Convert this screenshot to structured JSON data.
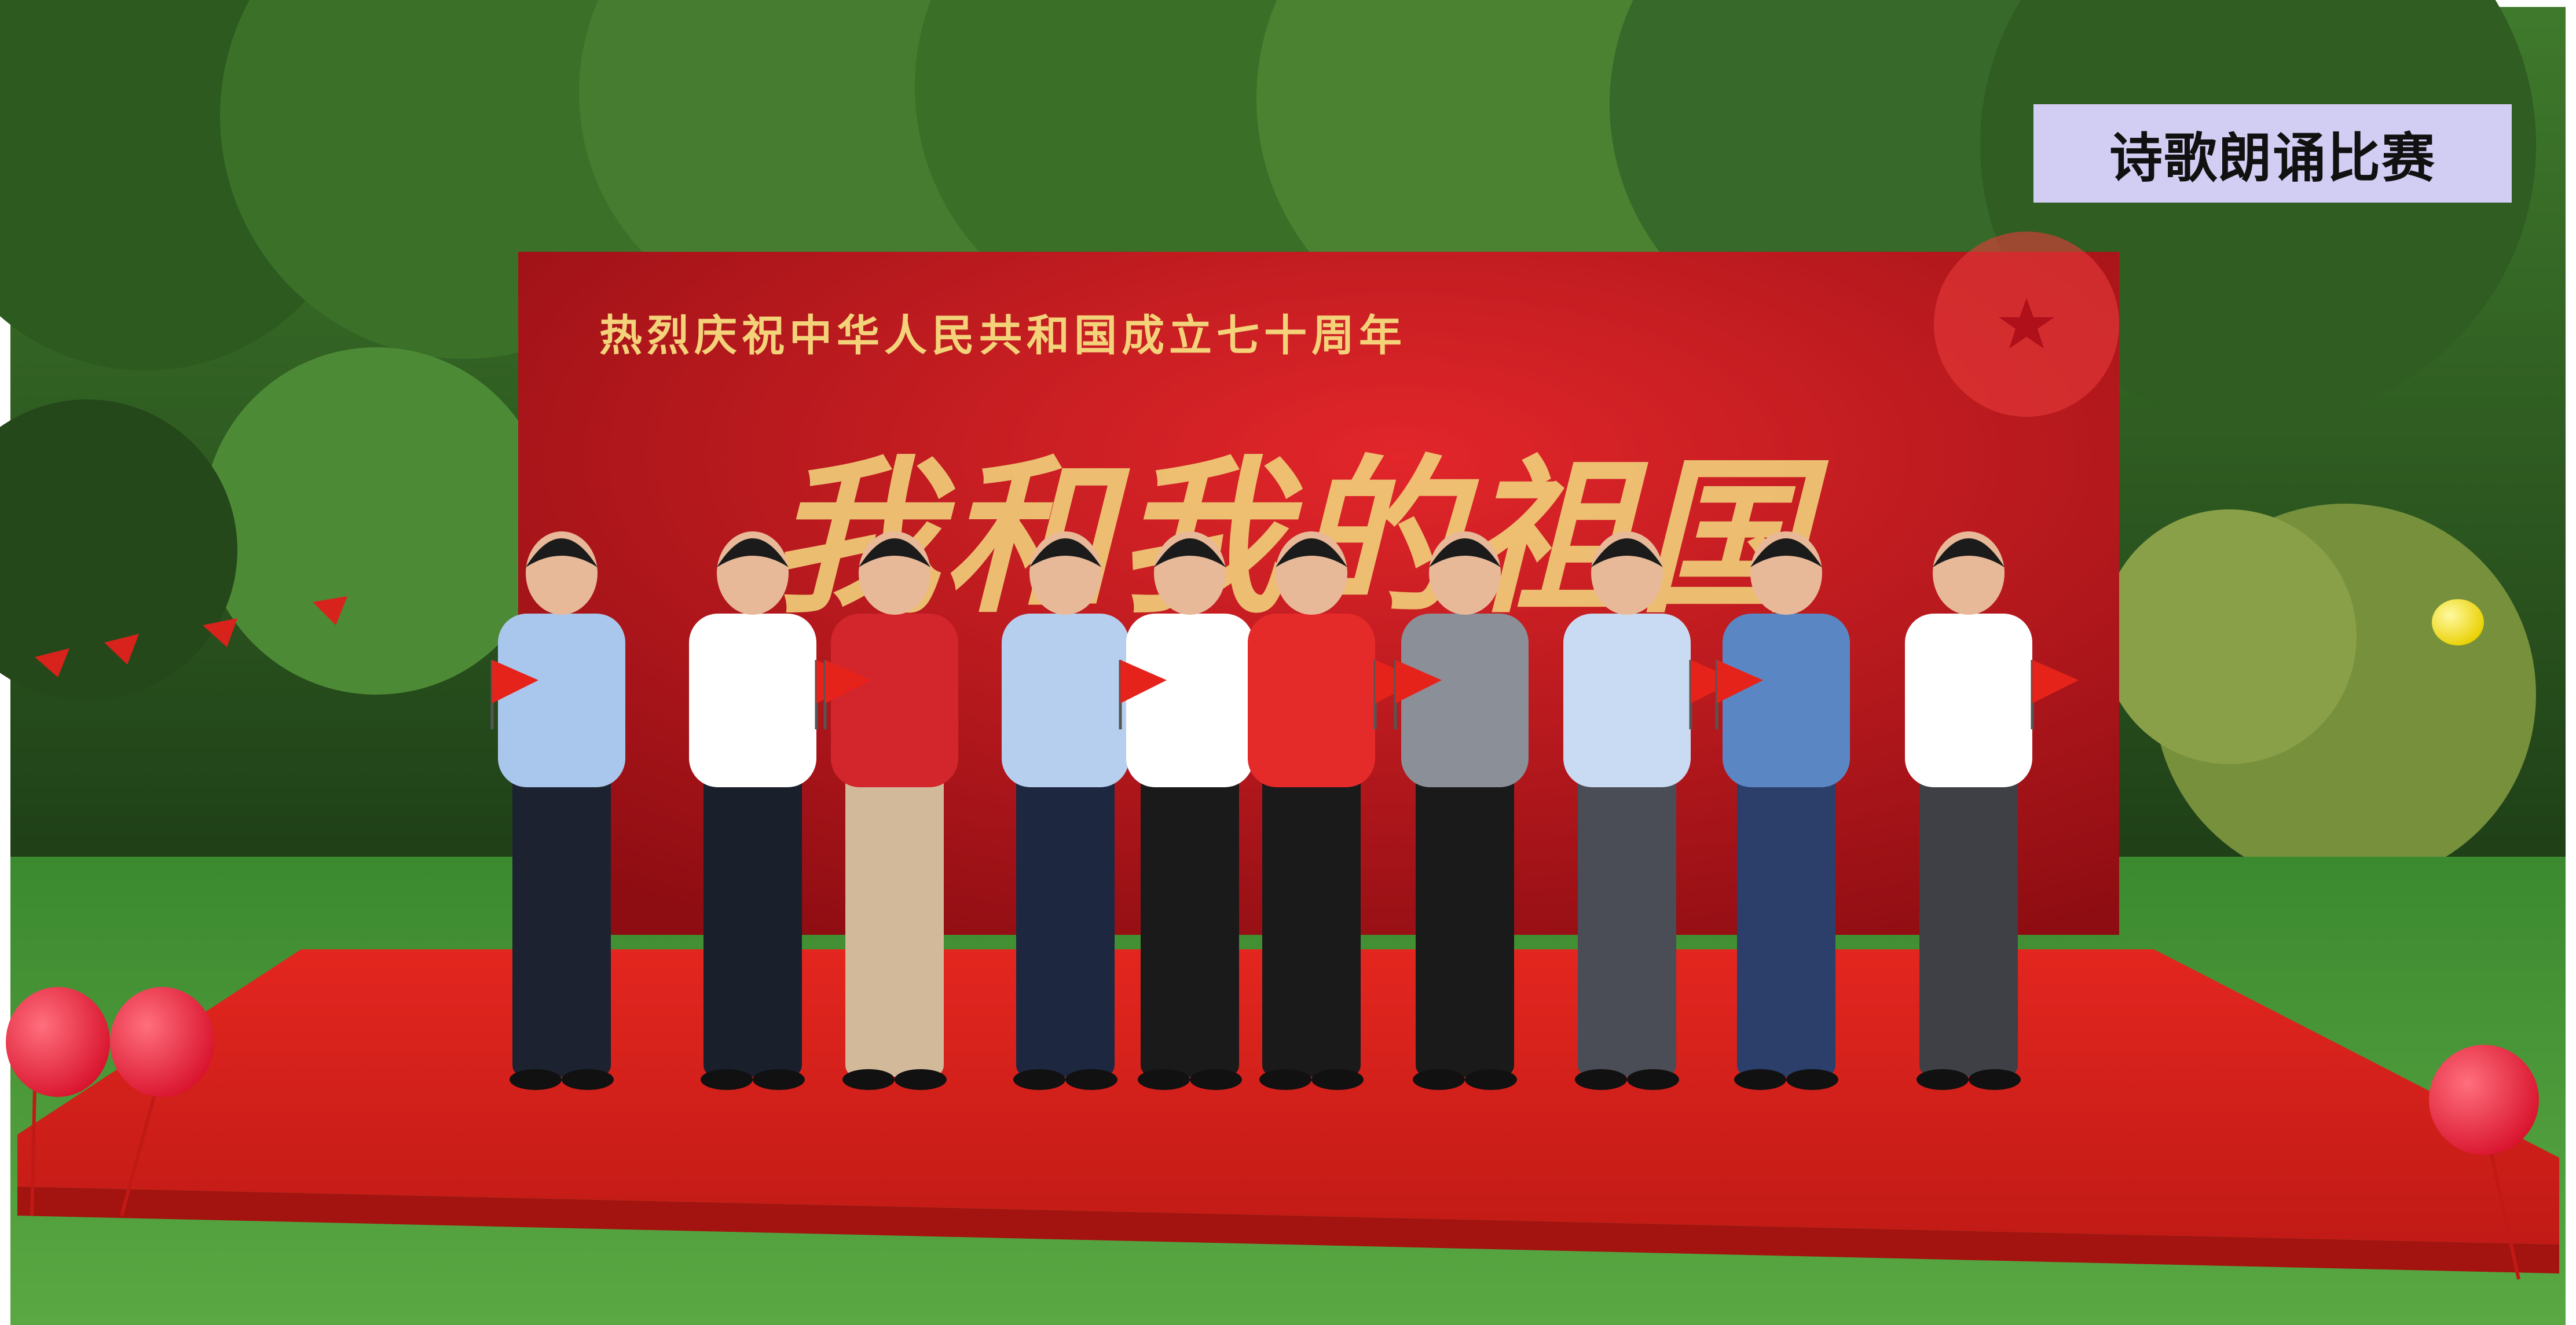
{
  "caption": "诗歌朗诵比赛",
  "backdrop": {
    "headline": "热烈庆祝中华人民共和国成立七十周年",
    "calligraphy": "我和我的祖国"
  },
  "colors": {
    "foliage": "#2f5d22",
    "grass": "#4f9a3a",
    "stage_red": "#d8221c",
    "backdrop_red": "#c4161c",
    "gold": "#f3d27a",
    "caption_bg": "#d2cdf3"
  },
  "people_count": 10
}
